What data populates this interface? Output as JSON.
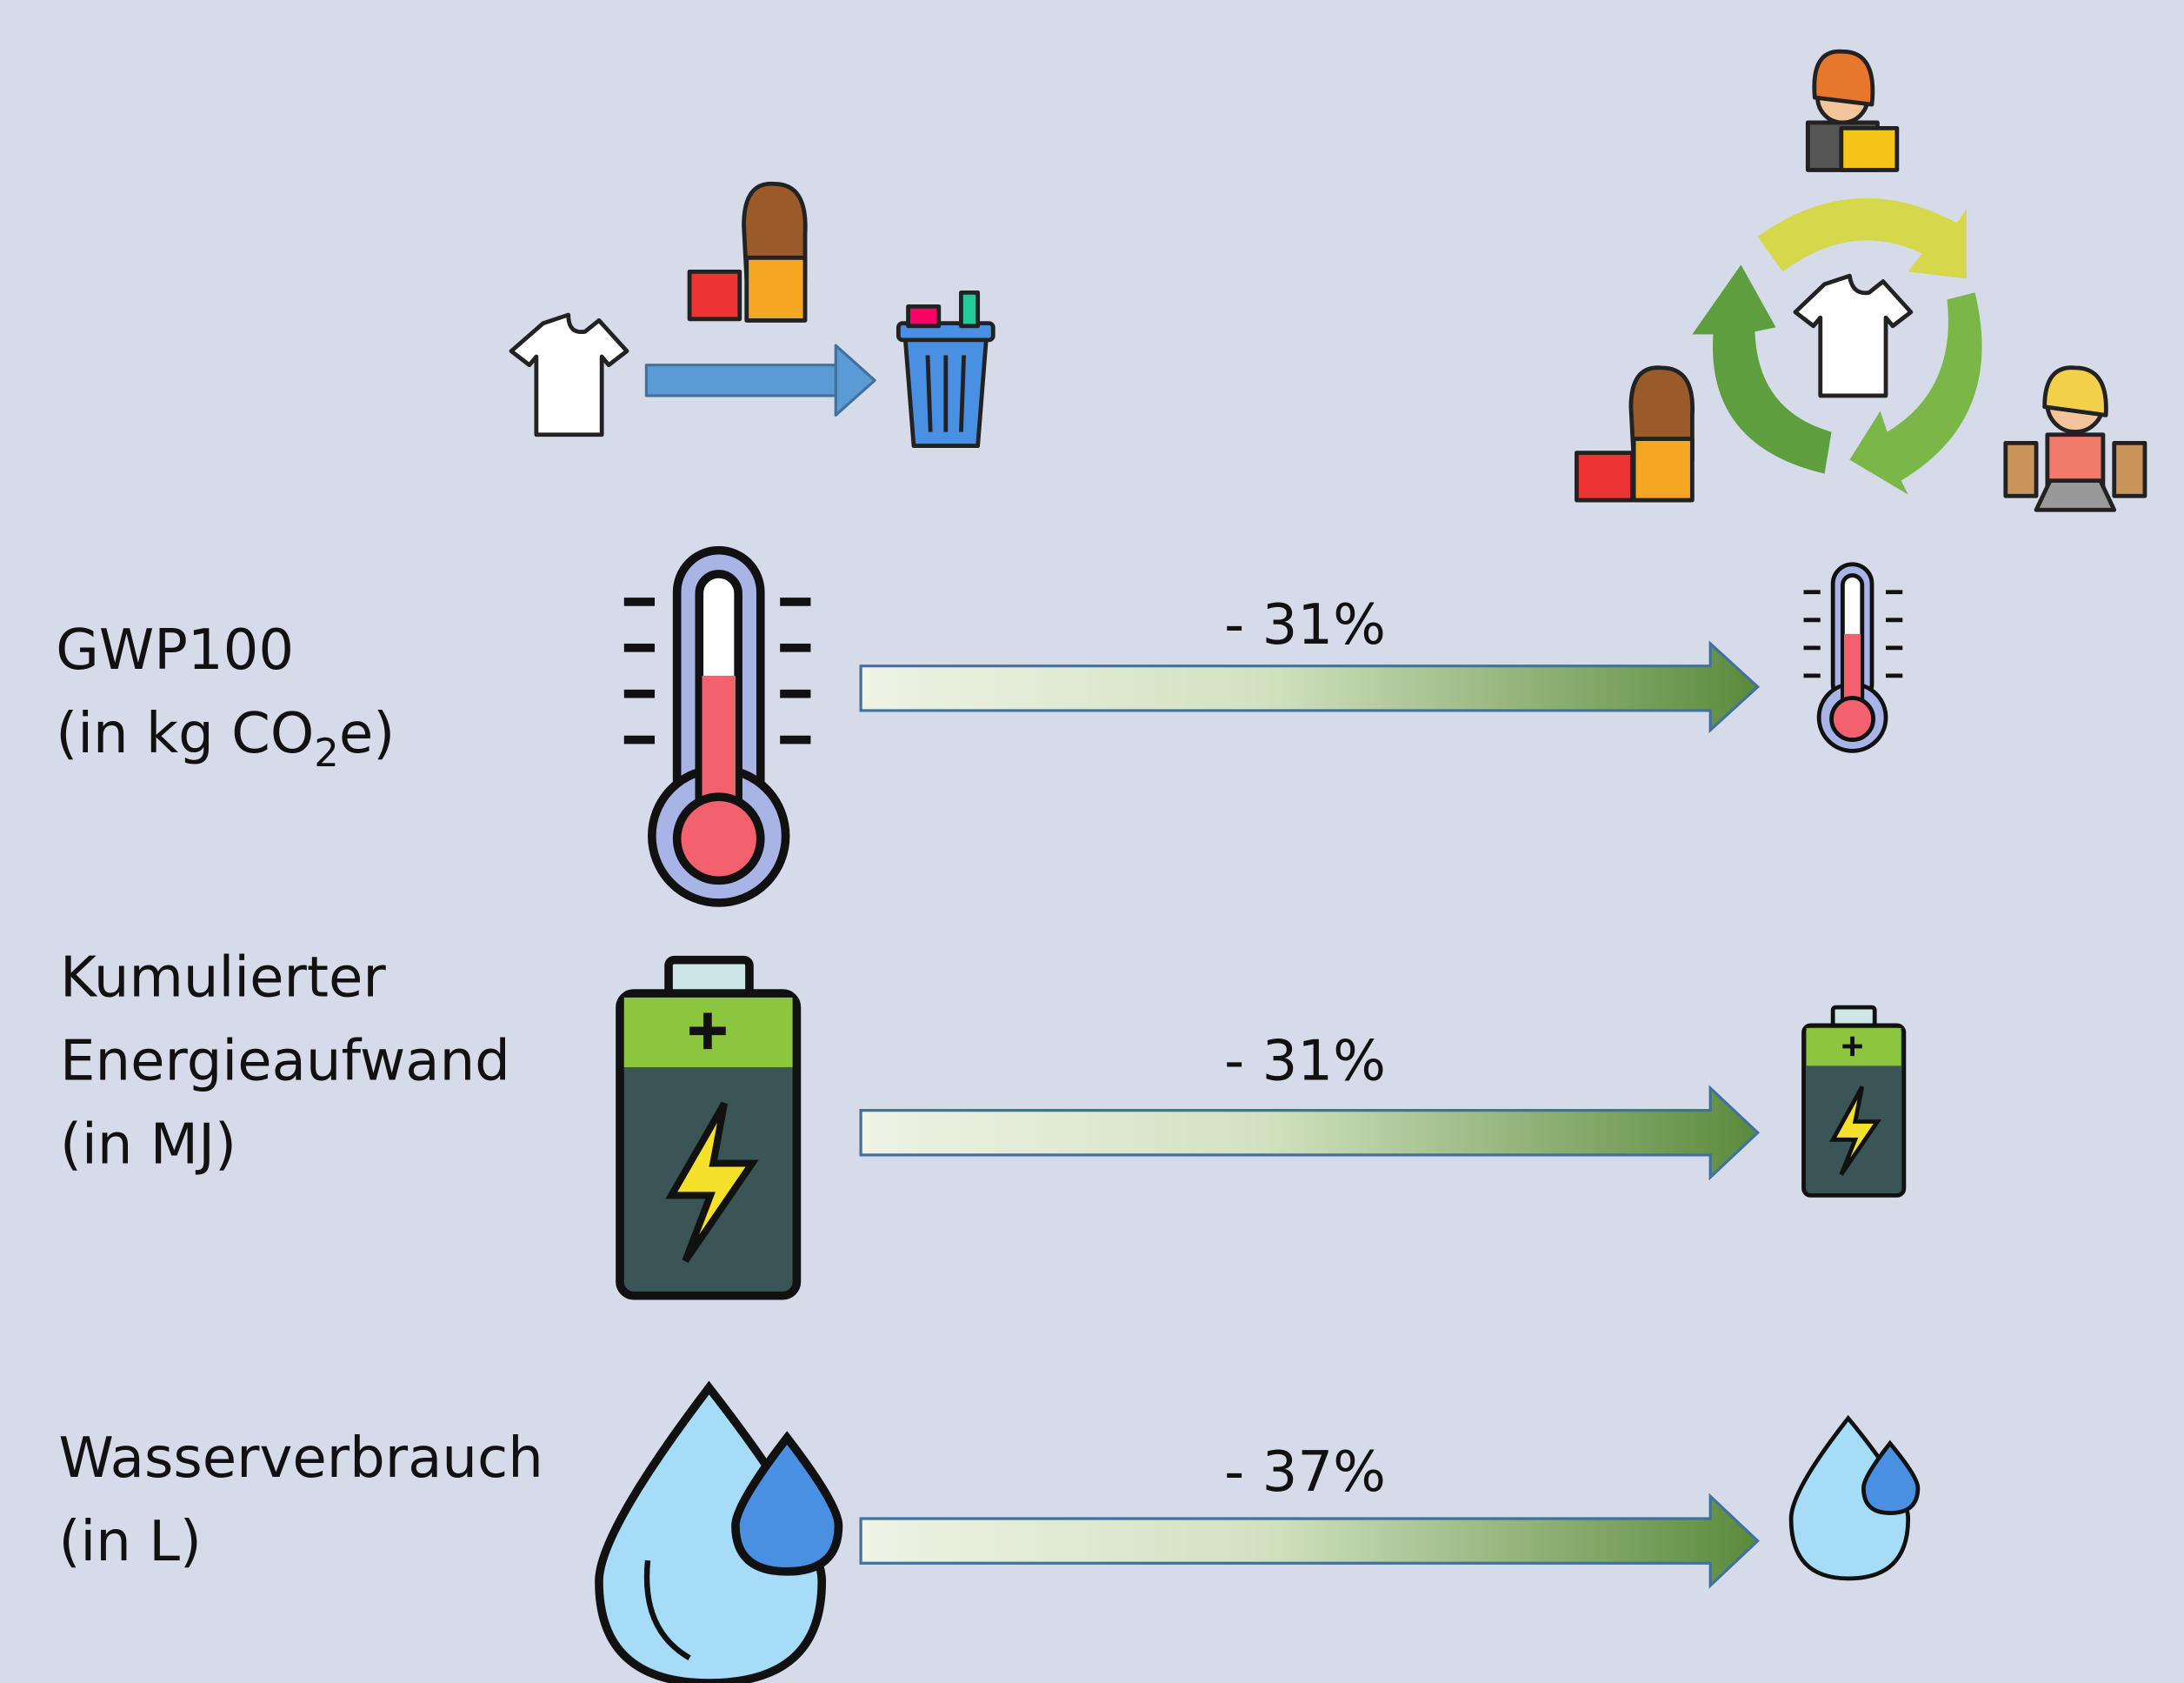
{
  "rows": [
    {
      "label": [
        "GWP100"
      ],
      "unit": {
        "before": "(in kg CO",
        "sub": "2",
        "after": "e)"
      },
      "change": "- 31%"
    },
    {
      "label": [
        "Kumulierter",
        "Energieaufwand",
        "(in MJ)"
      ],
      "change": "- 31%"
    },
    {
      "label": [
        "Wasserverbrauch",
        "(in L)"
      ],
      "change": "- 37%"
    }
  ]
}
